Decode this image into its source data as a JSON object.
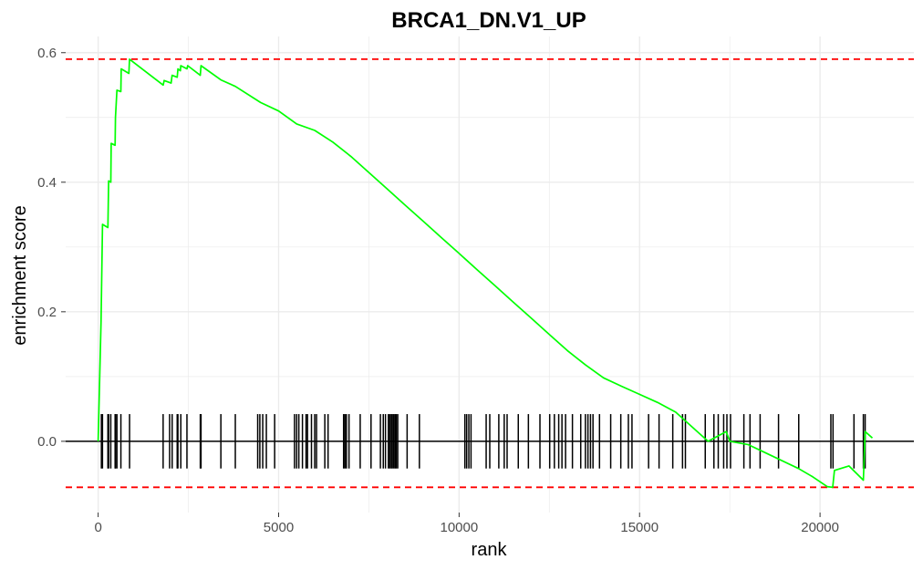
{
  "chart_data": {
    "type": "line",
    "title": "BRCA1_DN.V1_UP",
    "xlabel": "rank",
    "ylabel": "enrichment score",
    "xlim": [
      -900,
      22600
    ],
    "ylim": [
      -0.11,
      0.625
    ],
    "x_ticks": [
      0,
      5000,
      10000,
      15000,
      20000
    ],
    "x_tick_labels": [
      "0",
      "5000",
      "10000",
      "15000",
      "20000"
    ],
    "y_ticks": [
      0.0,
      0.2,
      0.4,
      0.6
    ],
    "y_tick_labels": [
      "0.0",
      "0.2",
      "0.4",
      "0.6"
    ],
    "grid": true,
    "legend": "none",
    "colors": {
      "curve": "#00ff00",
      "threshold": "#ff0000",
      "hits": "#000000",
      "zero_line": "#000000",
      "grid": "#ebebeb"
    },
    "max_es": 0.59,
    "min_es": -0.071,
    "series": [
      {
        "points": [
          [
            0,
            0
          ],
          [
            80,
            0.185
          ],
          [
            120,
            0.335
          ],
          [
            270,
            0.33
          ],
          [
            290,
            0.402
          ],
          [
            350,
            0.4
          ],
          [
            360,
            0.46
          ],
          [
            470,
            0.457
          ],
          [
            480,
            0.5
          ],
          [
            520,
            0.542
          ],
          [
            630,
            0.54
          ],
          [
            640,
            0.575
          ],
          [
            850,
            0.568
          ],
          [
            870,
            0.59
          ],
          [
            1800,
            0.55
          ],
          [
            1830,
            0.557
          ],
          [
            2020,
            0.553
          ],
          [
            2050,
            0.565
          ],
          [
            2190,
            0.562
          ],
          [
            2210,
            0.575
          ],
          [
            2280,
            0.572
          ],
          [
            2290,
            0.58
          ],
          [
            2460,
            0.575
          ],
          [
            2480,
            0.58
          ],
          [
            2830,
            0.565
          ],
          [
            2850,
            0.58
          ],
          [
            3400,
            0.558
          ],
          [
            3800,
            0.548
          ],
          [
            4500,
            0.523
          ],
          [
            5000,
            0.51
          ],
          [
            5500,
            0.49
          ],
          [
            6000,
            0.48
          ],
          [
            6500,
            0.462
          ],
          [
            7000,
            0.44
          ],
          [
            7500,
            0.415
          ],
          [
            8000,
            0.39
          ],
          [
            8500,
            0.365
          ],
          [
            9000,
            0.34
          ],
          [
            9500,
            0.315
          ],
          [
            10000,
            0.29
          ],
          [
            10500,
            0.265
          ],
          [
            11000,
            0.24
          ],
          [
            11500,
            0.215
          ],
          [
            12000,
            0.19
          ],
          [
            12500,
            0.165
          ],
          [
            13000,
            0.14
          ],
          [
            13500,
            0.118
          ],
          [
            14000,
            0.098
          ],
          [
            14500,
            0.085
          ],
          [
            14900,
            0.075
          ],
          [
            15500,
            0.06
          ],
          [
            16000,
            0.045
          ],
          [
            16900,
            0.0
          ],
          [
            17400,
            0.015
          ],
          [
            17500,
            0.0
          ],
          [
            18000,
            -0.005
          ],
          [
            18500,
            -0.018
          ],
          [
            19400,
            -0.042
          ],
          [
            19800,
            -0.055
          ],
          [
            20200,
            -0.07
          ],
          [
            20350,
            -0.071
          ],
          [
            20400,
            -0.045
          ],
          [
            20800,
            -0.038
          ],
          [
            21200,
            -0.06
          ],
          [
            21250,
            0.015
          ],
          [
            21450,
            0.005
          ]
        ]
      }
    ],
    "hits": [
      90,
      120,
      270,
      290,
      350,
      470,
      480,
      520,
      630,
      870,
      1800,
      1980,
      2050,
      2190,
      2210,
      2290,
      2460,
      2830,
      2850,
      3400,
      3800,
      4420,
      4480,
      4560,
      4660,
      4890,
      5440,
      5500,
      5560,
      5660,
      5760,
      5800,
      5910,
      6000,
      6050,
      6280,
      6370,
      6800,
      6840,
      6880,
      6950,
      7260,
      7560,
      7820,
      7900,
      7960,
      8040,
      8080,
      8120,
      8150,
      8190,
      8230,
      8260,
      8300,
      8560,
      8900,
      10160,
      10210,
      10270,
      10330,
      10750,
      10850,
      11100,
      11250,
      11330,
      11640,
      11920,
      12240,
      12510,
      12640,
      12760,
      12850,
      12950,
      13140,
      13370,
      13500,
      13570,
      13640,
      13710,
      13890,
      14200,
      14480,
      14690,
      14790,
      15250,
      15540,
      15920,
      16190,
      16270,
      16820,
      17060,
      17180,
      17330,
      17420,
      17520,
      17890,
      18060,
      18340,
      18850,
      19410,
      20300,
      20360,
      20940,
      21200,
      21250
    ]
  }
}
